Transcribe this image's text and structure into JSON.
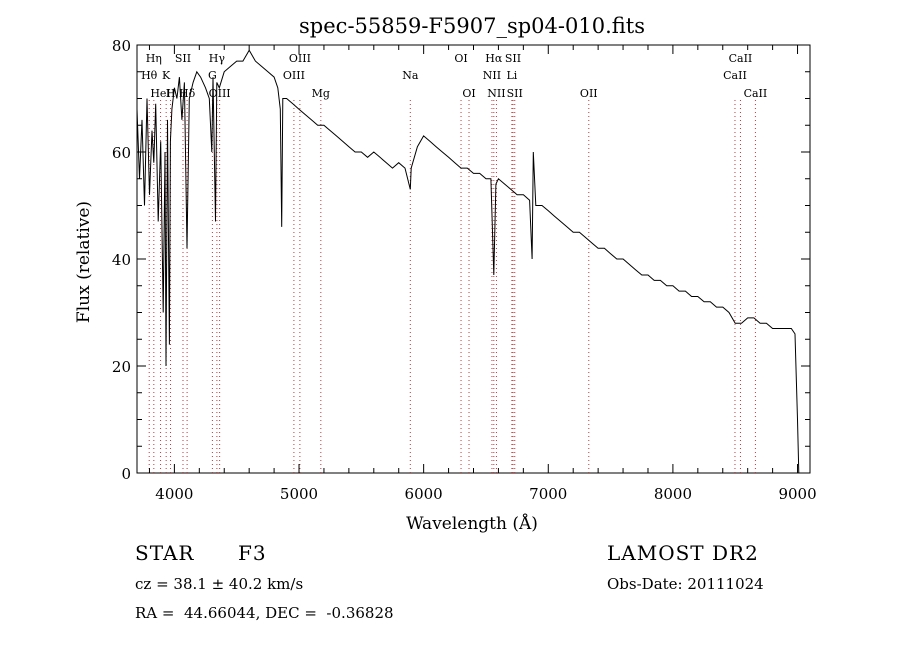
{
  "chart_data": {
    "type": "line",
    "title": "spec-55859-F5907_sp04-010.fits",
    "xlabel": "Wavelength (Å)",
    "ylabel": "Flux (relative)",
    "xlim": [
      3700,
      9100
    ],
    "ylim": [
      0,
      80
    ],
    "xticks": [
      4000,
      5000,
      6000,
      7000,
      8000,
      9000
    ],
    "yticks": [
      0,
      20,
      40,
      60,
      80
    ],
    "grid": false,
    "series": [
      {
        "x": [
          3700,
          3720,
          3740,
          3760,
          3780,
          3800,
          3820,
          3835,
          3850,
          3870,
          3890,
          3910,
          3925,
          3933,
          3945,
          3960,
          3968,
          3980,
          4000,
          4020,
          4040,
          4060,
          4080,
          4101,
          4120,
          4150,
          4180,
          4210,
          4250,
          4280,
          4300,
          4310,
          4330,
          4340,
          4360,
          4400,
          4450,
          4500,
          4550,
          4600,
          4650,
          4700,
          4750,
          4800,
          4830,
          4850,
          4861,
          4870,
          4900,
          4950,
          5000,
          5050,
          5100,
          5150,
          5200,
          5250,
          5300,
          5350,
          5400,
          5450,
          5500,
          5550,
          5600,
          5650,
          5700,
          5750,
          5800,
          5850,
          5893,
          5900,
          5950,
          6000,
          6050,
          6100,
          6150,
          6200,
          6250,
          6300,
          6350,
          6400,
          6450,
          6500,
          6540,
          6563,
          6580,
          6600,
          6650,
          6700,
          6750,
          6800,
          6850,
          6870,
          6880,
          6900,
          6950,
          7000,
          7050,
          7100,
          7150,
          7200,
          7250,
          7300,
          7350,
          7400,
          7450,
          7500,
          7550,
          7600,
          7650,
          7700,
          7750,
          7800,
          7850,
          7900,
          7950,
          8000,
          8050,
          8100,
          8150,
          8200,
          8250,
          8300,
          8350,
          8400,
          8450,
          8500,
          8550,
          8600,
          8650,
          8700,
          8750,
          8800,
          8850,
          8900,
          8950,
          8980,
          9000,
          9010
        ],
        "y": [
          68,
          55,
          66,
          50,
          70,
          52,
          64,
          58,
          69,
          47,
          62,
          30,
          60,
          20,
          66,
          24,
          62,
          68,
          72,
          70,
          74,
          66,
          73,
          42,
          70,
          73,
          75,
          74,
          72,
          70,
          60,
          74,
          47,
          73,
          72,
          75,
          76,
          77,
          77,
          79,
          77,
          76,
          75,
          74,
          72,
          68,
          46,
          70,
          70,
          69,
          68,
          67,
          66,
          65,
          65,
          64,
          63,
          62,
          61,
          60,
          60,
          59,
          60,
          59,
          58,
          57,
          58,
          57,
          53,
          57,
          61,
          63,
          62,
          61,
          60,
          59,
          58,
          57,
          57,
          56,
          56,
          55,
          55,
          37,
          54,
          55,
          54,
          53,
          52,
          52,
          51,
          40,
          60,
          50,
          50,
          49,
          48,
          47,
          46,
          45,
          45,
          44,
          43,
          42,
          42,
          41,
          40,
          40,
          39,
          38,
          37,
          37,
          36,
          36,
          35,
          35,
          34,
          34,
          33,
          33,
          32,
          32,
          31,
          31,
          30,
          28,
          28,
          29,
          29,
          28,
          28,
          27,
          27,
          27,
          27,
          26,
          10,
          0
        ]
      }
    ],
    "lines": [
      {
        "label": "Hη",
        "wl": 3835,
        "row": 0
      },
      {
        "label": "Hθ",
        "wl": 3798,
        "row": 1
      },
      {
        "label": "K",
        "wl": 3934,
        "row": 1
      },
      {
        "label": "HeI",
        "wl": 3889,
        "row": 2
      },
      {
        "label": "SII",
        "wl": 4069,
        "row": 0
      },
      {
        "label": "H",
        "wl": 3969,
        "row": 2
      },
      {
        "label": "Hδ",
        "wl": 4102,
        "row": 2
      },
      {
        "label": "Hγ",
        "wl": 4341,
        "row": 0
      },
      {
        "label": "G",
        "wl": 4305,
        "row": 1
      },
      {
        "label": "OIII",
        "wl": 4363,
        "row": 2
      },
      {
        "label": "OIII",
        "wl": 5007,
        "row": 0
      },
      {
        "label": "OIII",
        "wl": 4959,
        "row": 1
      },
      {
        "label": "Mg",
        "wl": 5175,
        "row": 2
      },
      {
        "label": "Na",
        "wl": 5893,
        "row": 1
      },
      {
        "label": "OI",
        "wl": 6300,
        "row": 0
      },
      {
        "label": "OI",
        "wl": 6364,
        "row": 2
      },
      {
        "label": "Hα",
        "wl": 6563,
        "row": 0
      },
      {
        "label": "SII",
        "wl": 6717,
        "row": 0
      },
      {
        "label": "NII",
        "wl": 6548,
        "row": 1
      },
      {
        "label": "Li",
        "wl": 6708,
        "row": 1
      },
      {
        "label": "NII",
        "wl": 6584,
        "row": 2
      },
      {
        "label": "SII",
        "wl": 6731,
        "row": 2
      },
      {
        "label": "OII",
        "wl": 7325,
        "row": 2
      },
      {
        "label": "CaII",
        "wl": 8542,
        "row": 0
      },
      {
        "label": "CaII",
        "wl": 8498,
        "row": 1
      },
      {
        "label": "CaII",
        "wl": 8662,
        "row": 2
      }
    ]
  },
  "info": {
    "class_label": "STAR",
    "subclass": "F3",
    "survey": "LAMOST DR2",
    "cz": "cz = 38.1 ± 40.2 km/s",
    "obs_date": "Obs-Date: 20111024",
    "coords": "RA =  44.66044, DEC =  -0.36828"
  },
  "colors": {
    "axis": "#000000",
    "spectrum": "#000000",
    "line_marker": "#cc3333"
  }
}
